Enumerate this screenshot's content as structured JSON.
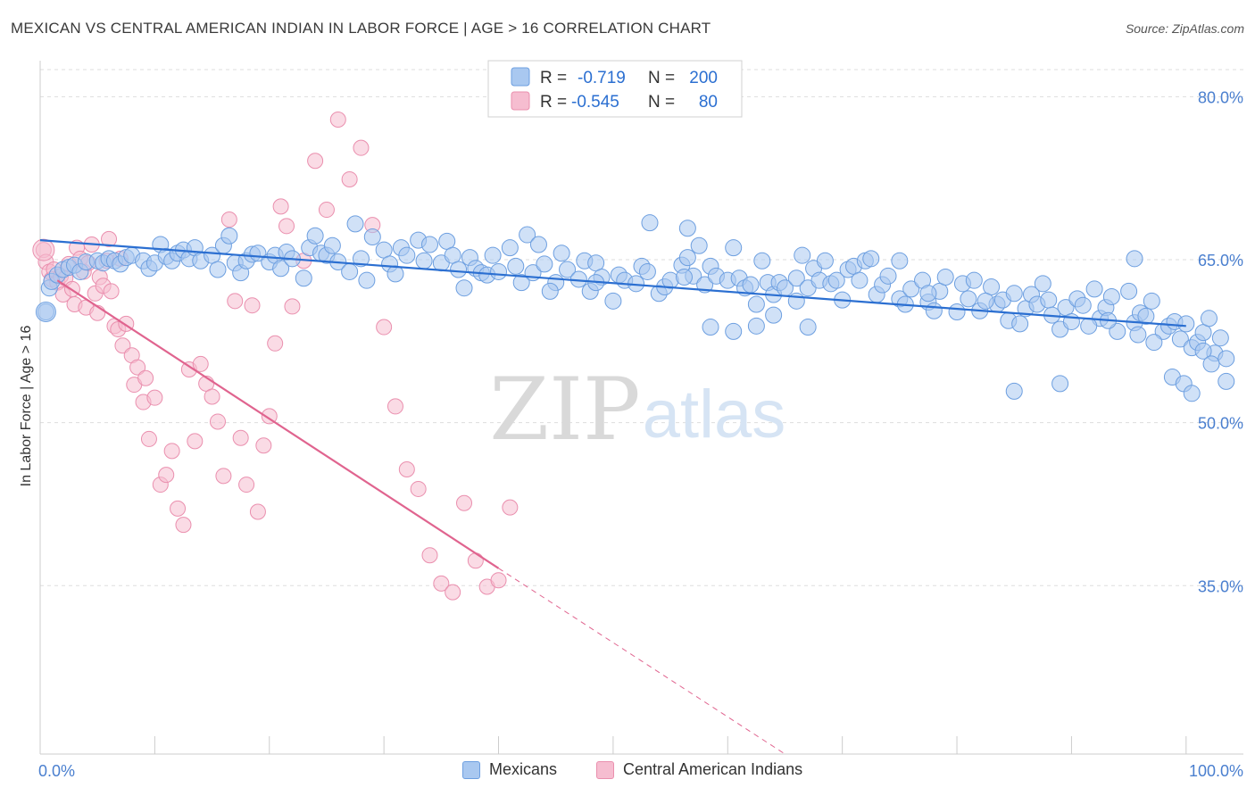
{
  "header": {
    "title": "MEXICAN VS CENTRAL AMERICAN INDIAN IN LABOR FORCE | AGE > 16 CORRELATION CHART",
    "source": "Source: ZipAtlas.com"
  },
  "watermark": {
    "zip": "ZIP",
    "atlas": "atlas"
  },
  "colors": {
    "blue_fill": "#a9c8f0",
    "blue_stroke": "#6d9fe0",
    "blue_line": "#2b6fd1",
    "pink_fill": "#f6bdd0",
    "pink_stroke": "#ea8fae",
    "pink_line": "#e0648f",
    "axis_label": "#4a7fcf",
    "grid": "#dddddd"
  },
  "chart_data": {
    "type": "scatter",
    "title": "MEXICAN VS CENTRAL AMERICAN INDIAN IN LABOR FORCE | AGE > 16 CORRELATION CHART",
    "xlabel": "",
    "ylabel": "In Labor Force | Age > 16",
    "xlim": [
      0,
      105
    ],
    "ylim": [
      19.5,
      82.5
    ],
    "x_tick_labels": [
      {
        "value": 0,
        "label": "0.0%"
      },
      {
        "value": 100,
        "label": "100.0%"
      }
    ],
    "y_ticks": [
      {
        "value": 80,
        "label": "80.0%"
      },
      {
        "value": 65,
        "label": "65.0%"
      },
      {
        "value": 50,
        "label": "50.0%"
      },
      {
        "value": 35,
        "label": "35.0%"
      }
    ],
    "grid": true,
    "legend_position": "top-center",
    "stats": [
      {
        "r_label": "R =",
        "r": "-0.719",
        "n_label": "N =",
        "n": "200"
      },
      {
        "r_label": "R =",
        "r": "-0.545",
        "n_label": "N =",
        "n": "80"
      }
    ],
    "series": [
      {
        "name": "Mexicans",
        "color": "#a9c8f0",
        "trend": {
          "x": [
            0,
            100
          ],
          "y": [
            66.8,
            58.9
          ],
          "dashed_to": null
        },
        "points": [
          [
            0.5,
            60.2
          ],
          [
            0.8,
            62.4
          ],
          [
            1,
            63
          ],
          [
            1.5,
            63.6
          ],
          [
            2,
            64.1
          ],
          [
            2.5,
            64.3
          ],
          [
            3,
            64.5
          ],
          [
            3.5,
            63.9
          ],
          [
            4,
            64.8
          ],
          [
            5,
            64.9
          ],
          [
            5.5,
            64.7
          ],
          [
            6,
            65.1
          ],
          [
            6.5,
            64.9
          ],
          [
            7,
            64.6
          ],
          [
            7.5,
            65.2
          ],
          [
            8,
            65.4
          ],
          [
            9,
            64.9
          ],
          [
            9.5,
            64.2
          ],
          [
            10,
            64.7
          ],
          [
            10.5,
            66.4
          ],
          [
            11,
            65.3
          ],
          [
            11.5,
            64.9
          ],
          [
            12,
            65.6
          ],
          [
            12.5,
            65.9
          ],
          [
            13,
            65.1
          ],
          [
            13.5,
            66.1
          ],
          [
            14,
            64.9
          ],
          [
            15,
            65.4
          ],
          [
            15.5,
            64.1
          ],
          [
            16,
            66.3
          ],
          [
            16.5,
            67.2
          ],
          [
            17,
            64.7
          ],
          [
            17.5,
            63.8
          ],
          [
            18,
            64.9
          ],
          [
            18.5,
            65.5
          ],
          [
            19,
            65.6
          ],
          [
            20,
            64.8
          ],
          [
            20.5,
            65.4
          ],
          [
            21,
            64.2
          ],
          [
            21.5,
            65.7
          ],
          [
            22,
            65.1
          ],
          [
            23,
            63.3
          ],
          [
            23.5,
            66.1
          ],
          [
            24,
            67.2
          ],
          [
            24.5,
            65.6
          ],
          [
            25,
            65.4
          ],
          [
            25.5,
            66.3
          ],
          [
            26,
            64.8
          ],
          [
            27,
            63.9
          ],
          [
            27.5,
            68.3
          ],
          [
            28,
            65.1
          ],
          [
            28.5,
            63.1
          ],
          [
            29,
            67.1
          ],
          [
            30,
            65.9
          ],
          [
            30.5,
            64.6
          ],
          [
            31,
            63.7
          ],
          [
            31.5,
            66.1
          ],
          [
            32,
            65.4
          ],
          [
            33,
            66.8
          ],
          [
            33.5,
            64.9
          ],
          [
            34,
            66.4
          ],
          [
            35,
            64.7
          ],
          [
            35.5,
            66.7
          ],
          [
            36,
            65.4
          ],
          [
            36.5,
            64.1
          ],
          [
            37,
            62.4
          ],
          [
            37.5,
            65.2
          ],
          [
            38,
            64.2
          ],
          [
            38.5,
            63.8
          ],
          [
            39,
            63.6
          ],
          [
            39.5,
            65.4
          ],
          [
            40,
            63.9
          ],
          [
            41,
            66.1
          ],
          [
            41.5,
            64.4
          ],
          [
            42,
            62.9
          ],
          [
            42.5,
            67.3
          ],
          [
            43,
            63.8
          ],
          [
            43.5,
            66.4
          ],
          [
            44,
            64.6
          ],
          [
            45,
            62.9
          ],
          [
            45.5,
            65.6
          ],
          [
            46,
            64.1
          ],
          [
            47,
            63.2
          ],
          [
            47.5,
            64.9
          ],
          [
            48,
            62.1
          ],
          [
            48.5,
            64.7
          ],
          [
            49,
            63.4
          ],
          [
            50,
            61.2
          ],
          [
            50.5,
            63.6
          ],
          [
            51,
            63.1
          ],
          [
            52,
            62.8
          ],
          [
            52.5,
            64.4
          ],
          [
            53,
            63.9
          ],
          [
            54,
            61.9
          ],
          [
            54.5,
            62.5
          ],
          [
            55,
            63.1
          ],
          [
            56,
            64.5
          ],
          [
            56.5,
            65.2
          ],
          [
            57,
            63.5
          ],
          [
            57.5,
            66.3
          ],
          [
            58,
            62.7
          ],
          [
            58.5,
            64.4
          ],
          [
            59,
            63.5
          ],
          [
            60,
            63.1
          ],
          [
            60.5,
            66.1
          ],
          [
            61,
            63.3
          ],
          [
            61.5,
            62.4
          ],
          [
            62,
            62.7
          ],
          [
            63,
            64.9
          ],
          [
            63.5,
            62.9
          ],
          [
            64,
            61.8
          ],
          [
            64.5,
            62.9
          ],
          [
            65,
            62.4
          ],
          [
            66,
            63.3
          ],
          [
            66.5,
            65.4
          ],
          [
            67,
            62.4
          ],
          [
            67.5,
            64.2
          ],
          [
            68,
            63.1
          ],
          [
            68.5,
            64.9
          ],
          [
            69,
            62.8
          ],
          [
            69.5,
            63.1
          ],
          [
            70,
            61.3
          ],
          [
            70.5,
            64.1
          ],
          [
            71,
            64.4
          ],
          [
            71.5,
            63.1
          ],
          [
            72,
            64.9
          ],
          [
            72.5,
            65.1
          ],
          [
            73,
            61.8
          ],
          [
            73.5,
            62.7
          ],
          [
            74,
            63.5
          ],
          [
            75,
            61.4
          ],
          [
            75.5,
            60.9
          ],
          [
            76,
            62.3
          ],
          [
            77,
            63.1
          ],
          [
            77.5,
            61.1
          ],
          [
            78,
            60.3
          ],
          [
            78.5,
            62.1
          ],
          [
            79,
            63.4
          ],
          [
            80,
            60.2
          ],
          [
            80.5,
            62.8
          ],
          [
            81,
            61.4
          ],
          [
            81.5,
            63.1
          ],
          [
            82,
            60.3
          ],
          [
            83,
            62.5
          ],
          [
            83.5,
            60.9
          ],
          [
            84,
            61.3
          ],
          [
            84.5,
            59.4
          ],
          [
            85,
            61.9
          ],
          [
            86,
            60.5
          ],
          [
            86.5,
            61.8
          ],
          [
            87,
            60.9
          ],
          [
            87.5,
            62.8
          ],
          [
            88,
            61.3
          ],
          [
            89,
            58.6
          ],
          [
            89.5,
            60.6
          ],
          [
            90,
            59.3
          ],
          [
            90.5,
            61.4
          ],
          [
            91,
            60.8
          ],
          [
            92,
            62.3
          ],
          [
            92.5,
            59.6
          ],
          [
            93,
            60.6
          ],
          [
            93.5,
            61.6
          ],
          [
            94,
            58.4
          ],
          [
            95,
            62.1
          ],
          [
            95.5,
            59.2
          ],
          [
            96,
            60.1
          ],
          [
            96.5,
            59.8
          ],
          [
            97,
            61.2
          ],
          [
            98,
            58.4
          ],
          [
            98.5,
            58.9
          ],
          [
            99,
            59.3
          ],
          [
            99.5,
            57.7
          ],
          [
            100,
            59.1
          ],
          [
            100.5,
            56.9
          ],
          [
            101,
            57.4
          ],
          [
            101.5,
            58.3
          ],
          [
            102,
            59.6
          ],
          [
            102.5,
            56.4
          ],
          [
            103,
            57.8
          ],
          [
            103.5,
            55.9
          ],
          [
            44.5,
            62.1
          ],
          [
            48.5,
            62.9
          ],
          [
            56.2,
            63.4
          ],
          [
            62.5,
            60.9
          ],
          [
            66,
            61.2
          ],
          [
            75,
            64.9
          ],
          [
            77.5,
            61.9
          ],
          [
            82.5,
            61.2
          ],
          [
            85.5,
            59.1
          ],
          [
            88.3,
            59.9
          ],
          [
            91.5,
            58.9
          ],
          [
            93.2,
            59.4
          ],
          [
            95.8,
            58.1
          ],
          [
            97.2,
            57.4
          ],
          [
            98.8,
            54.2
          ],
          [
            99.8,
            53.6
          ],
          [
            100.5,
            52.7
          ],
          [
            101.5,
            56.6
          ],
          [
            102.2,
            55.4
          ],
          [
            103.5,
            53.8
          ],
          [
            53.2,
            68.4
          ],
          [
            56.5,
            67.9
          ],
          [
            89,
            53.6
          ],
          [
            85,
            52.9
          ],
          [
            95.5,
            65.1
          ],
          [
            58.5,
            58.8
          ],
          [
            60.5,
            58.4
          ],
          [
            62.5,
            58.9
          ],
          [
            64,
            59.9
          ],
          [
            67,
            58.8
          ]
        ]
      },
      {
        "name": "Central American Indians",
        "color": "#f6bdd0",
        "trend": {
          "x": [
            1.5,
            40
          ],
          "y": [
            63.1,
            36.6
          ],
          "dashed_to": {
            "x": 65,
            "y": 19.5
          }
        },
        "points": [
          [
            0.3,
            65.9
          ],
          [
            0.5,
            64.8
          ],
          [
            0.8,
            63.9
          ],
          [
            1,
            63.2
          ],
          [
            1.2,
            64.1
          ],
          [
            1.5,
            62.9
          ],
          [
            1.8,
            63.5
          ],
          [
            2,
            61.8
          ],
          [
            2.2,
            63.3
          ],
          [
            2.5,
            64.6
          ],
          [
            2.8,
            62.3
          ],
          [
            3,
            60.9
          ],
          [
            3.2,
            66.1
          ],
          [
            3.5,
            65.1
          ],
          [
            3.8,
            63.9
          ],
          [
            4,
            60.6
          ],
          [
            4.2,
            64.7
          ],
          [
            4.5,
            66.4
          ],
          [
            4.8,
            61.9
          ],
          [
            5,
            60.1
          ],
          [
            5.2,
            63.4
          ],
          [
            5.5,
            62.6
          ],
          [
            5.8,
            64.9
          ],
          [
            6,
            66.9
          ],
          [
            6.2,
            62.1
          ],
          [
            6.5,
            58.9
          ],
          [
            6.8,
            58.6
          ],
          [
            7,
            65.1
          ],
          [
            7.2,
            57.1
          ],
          [
            7.5,
            59.1
          ],
          [
            8,
            56.2
          ],
          [
            8.2,
            53.5
          ],
          [
            8.5,
            55.1
          ],
          [
            9,
            51.9
          ],
          [
            9.2,
            54.1
          ],
          [
            9.5,
            48.5
          ],
          [
            10,
            52.3
          ],
          [
            10.5,
            44.3
          ],
          [
            11,
            45.2
          ],
          [
            11.5,
            47.4
          ],
          [
            12,
            42.1
          ],
          [
            12.5,
            40.6
          ],
          [
            13,
            54.9
          ],
          [
            13.5,
            48.3
          ],
          [
            14,
            55.4
          ],
          [
            14.5,
            53.6
          ],
          [
            15,
            52.4
          ],
          [
            15.5,
            50.1
          ],
          [
            16,
            45.1
          ],
          [
            16.5,
            68.7
          ],
          [
            17,
            61.2
          ],
          [
            17.5,
            48.6
          ],
          [
            18,
            44.3
          ],
          [
            18.5,
            60.8
          ],
          [
            19,
            41.8
          ],
          [
            19.5,
            47.9
          ],
          [
            20,
            50.6
          ],
          [
            20.5,
            57.3
          ],
          [
            21,
            69.9
          ],
          [
            21.5,
            68.1
          ],
          [
            22,
            60.7
          ],
          [
            23,
            64.9
          ],
          [
            24,
            74.1
          ],
          [
            25,
            69.6
          ],
          [
            26,
            77.9
          ],
          [
            27,
            72.4
          ],
          [
            28,
            75.3
          ],
          [
            29,
            68.2
          ],
          [
            30,
            58.8
          ],
          [
            31,
            51.5
          ],
          [
            32,
            45.7
          ],
          [
            33,
            43.9
          ],
          [
            34,
            37.8
          ],
          [
            35,
            35.2
          ],
          [
            36,
            34.4
          ],
          [
            37,
            42.6
          ],
          [
            38,
            37.3
          ],
          [
            39,
            34.9
          ],
          [
            40,
            35.5
          ],
          [
            41,
            42.2
          ]
        ]
      }
    ]
  },
  "legend_bottom": {
    "items": [
      "Mexicans",
      "Central American Indians"
    ]
  }
}
